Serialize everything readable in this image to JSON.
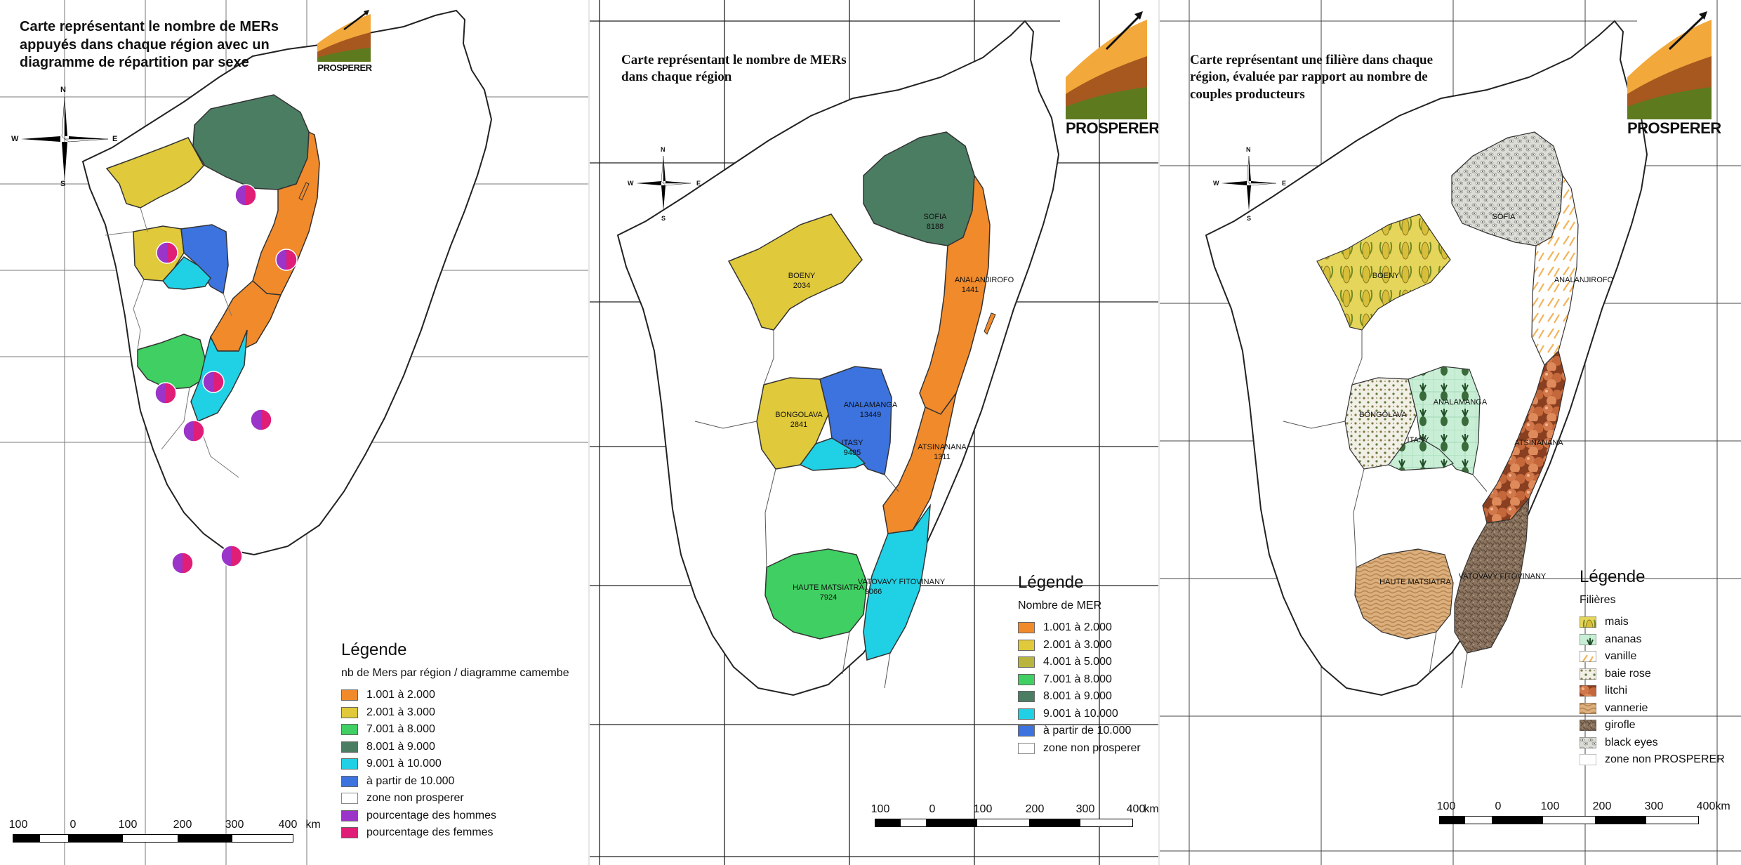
{
  "colors": {
    "orange": "#f08a2b",
    "yellow": "#e0c93a",
    "olive": "#b9b43e",
    "green": "#40cf62",
    "darkgreen": "#4b7d63",
    "cyan": "#20d0e4",
    "blue": "#3c73de",
    "men": "#9b34c8",
    "women": "#e01e78",
    "logo_orange": "#f2a83a",
    "logo_brown": "#a6581f",
    "logo_green": "#5d7a1e"
  },
  "panel1": {
    "title": "Carte représentant le nombre de MERs appuyés dans chaque région avec un diagramme de répartition par sexe",
    "logo_text": "PROSPERER",
    "compass": {
      "n": "N",
      "s": "S",
      "e": "E",
      "w": "W"
    },
    "legend": {
      "title": "Légende",
      "subtitle": "nb de Mers par région / diagramme camembe",
      "items": [
        {
          "label": "1.001 à 2.000",
          "color": "#f08a2b"
        },
        {
          "label": "2.001 à 3.000",
          "color": "#e0c93a"
        },
        {
          "label": "7.001 à 8.000",
          "color": "#40cf62"
        },
        {
          "label": "8.001 à 9.000",
          "color": "#4b7d63"
        },
        {
          "label": "9.001 à 10.000",
          "color": "#20d0e4"
        },
        {
          "label": "à partir de 10.000",
          "color": "#3c73de"
        },
        {
          "label": "zone non prosperer",
          "color": "#ffffff"
        },
        {
          "label": "pourcentage des hommes",
          "color": "#9b34c8"
        },
        {
          "label": "pourcentage des femmes",
          "color": "#e01e78"
        }
      ]
    },
    "scale": {
      "labels": [
        "100",
        "0",
        "100",
        "200",
        "300",
        "400"
      ],
      "unit": "km"
    }
  },
  "panel2": {
    "title": "Carte représentant le nombre de MERs dans chaque région",
    "logo_text": "PROSPERER",
    "compass": {
      "n": "N",
      "s": "S",
      "e": "E",
      "w": "W"
    },
    "regions": [
      {
        "name": "SOFIA",
        "value": "8188"
      },
      {
        "name": "ANALANJIROFO",
        "value": "1441"
      },
      {
        "name": "BOENY",
        "value": "2034"
      },
      {
        "name": "BONGOLAVA",
        "value": "2841"
      },
      {
        "name": "ANALAMANGA",
        "value": "13449"
      },
      {
        "name": "ITASY",
        "value": "9485"
      },
      {
        "name": "ATSINANANA",
        "value": "1311"
      },
      {
        "name": "HAUTE MATSIATRA",
        "value": "7924"
      },
      {
        "name": "VATOVAVY FITOVINANY",
        "value": "9066"
      }
    ],
    "legend": {
      "title": "Légende",
      "subtitle": "Nombre de MER",
      "items": [
        {
          "label": "1.001 à 2.000",
          "color": "#f08a2b"
        },
        {
          "label": "2.001 à 3.000",
          "color": "#e0c93a"
        },
        {
          "label": "4.001 à 5.000",
          "color": "#b9b43e"
        },
        {
          "label": "7.001 à 8.000",
          "color": "#40cf62"
        },
        {
          "label": "8.001 à 9.000",
          "color": "#4b7d63"
        },
        {
          "label": "9.001 à 10.000",
          "color": "#20d0e4"
        },
        {
          "label": "à partir de 10.000",
          "color": "#3c73de"
        },
        {
          "label": "zone non prosperer",
          "color": "#ffffff"
        }
      ]
    },
    "scale": {
      "labels": [
        "100",
        "0",
        "100",
        "200",
        "300",
        "400"
      ],
      "unit": "km"
    }
  },
  "panel3": {
    "title": "Carte représentant une filière dans chaque région, évaluée par rapport au nombre de couples producteurs",
    "logo_text": "PROSPERER",
    "compass": {
      "n": "N",
      "s": "S",
      "e": "E",
      "w": "W"
    },
    "regions": [
      {
        "name": "SOFIA"
      },
      {
        "name": "ANALANJIROFO"
      },
      {
        "name": "BOENY"
      },
      {
        "name": "BONGOLAVA"
      },
      {
        "name": "ANALAMANGA"
      },
      {
        "name": "ITASY"
      },
      {
        "name": "ATSINANANA"
      },
      {
        "name": "HAUTE MATSIATRA"
      },
      {
        "name": "VATOVAVY FITOVINANY"
      }
    ],
    "legend": {
      "title": "Légende",
      "subtitle": "Filières",
      "items": [
        {
          "label": "mais",
          "pattern": "pat-mais"
        },
        {
          "label": "ananas",
          "pattern": "pat-ananas"
        },
        {
          "label": "vanille",
          "pattern": "pat-vanille"
        },
        {
          "label": "baie rose",
          "pattern": "pat-baie"
        },
        {
          "label": "litchi",
          "pattern": "pat-litchi"
        },
        {
          "label": "vannerie",
          "pattern": "pat-vannerie"
        },
        {
          "label": "girofle",
          "pattern": "pat-girofle"
        },
        {
          "label": "black eyes",
          "pattern": "pat-black"
        },
        {
          "label": "zone non PROSPERER",
          "pattern": "none"
        }
      ]
    },
    "scale": {
      "labels": [
        "100",
        "0",
        "100",
        "200",
        "300",
        "400"
      ],
      "unit": "km"
    }
  }
}
